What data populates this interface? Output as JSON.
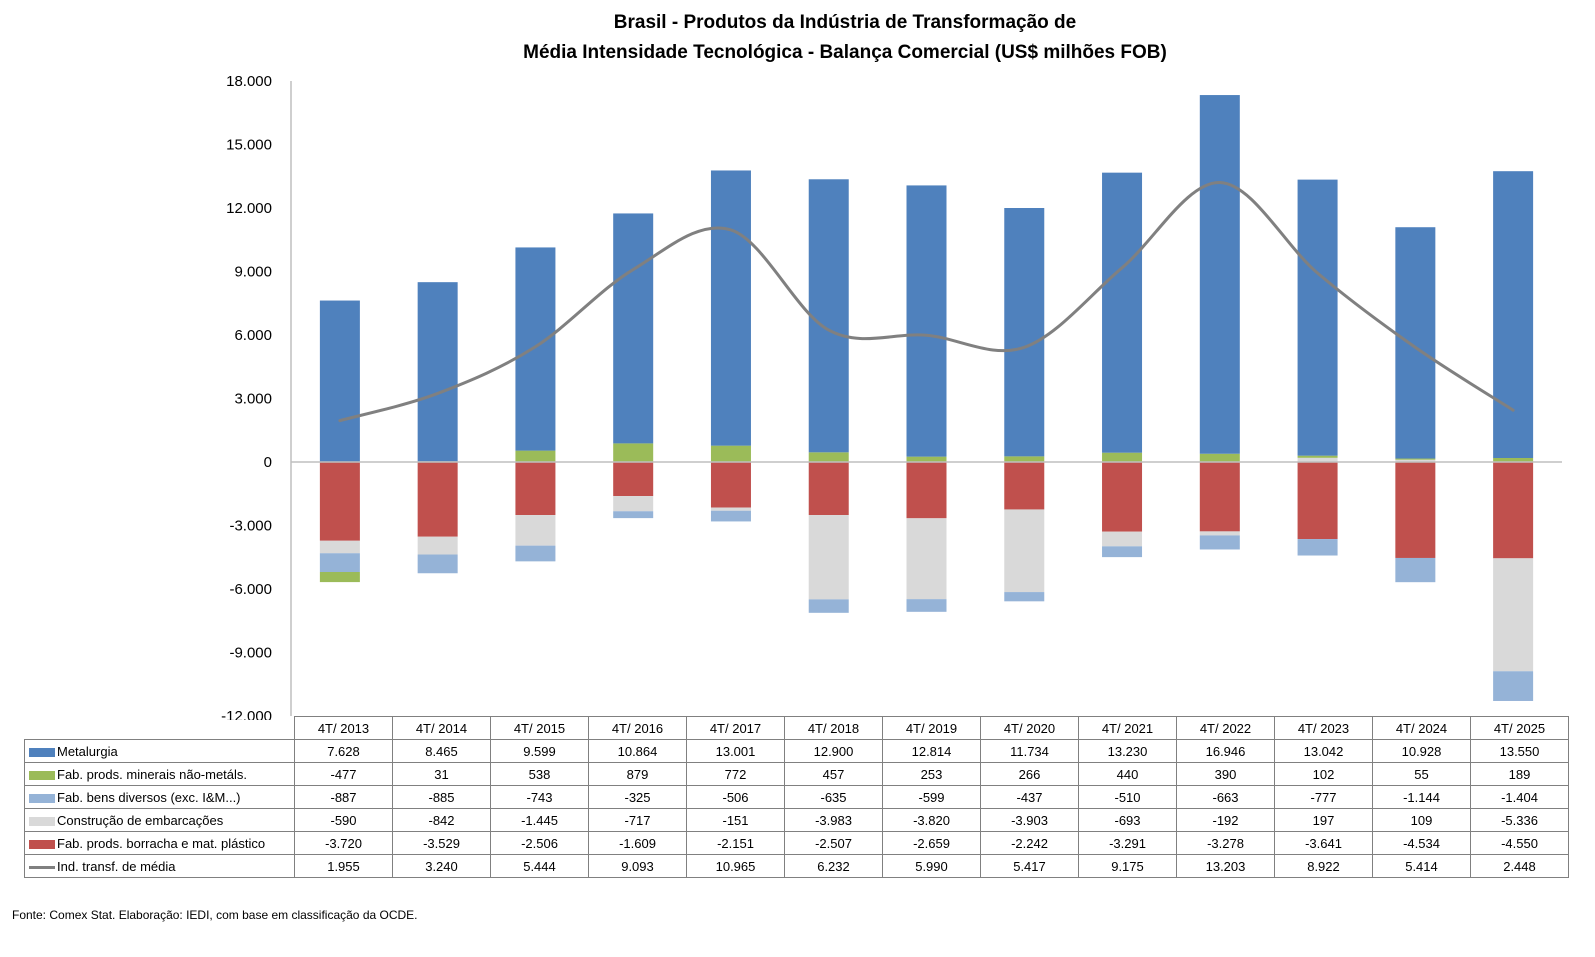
{
  "chart_data": {
    "type": "bar",
    "stacked": true,
    "title": "Brasil - Produtos da Indústria de Transformação de Média Intensidade Tecnológica - Balança Comercial (US$ milhões FOB)",
    "title_lines": [
      "Brasil - Produtos da Indústria de Transformação de",
      "Média Intensidade Tecnológica - Balança Comercial (US$ milhões FOB)"
    ],
    "xlabel": "",
    "ylabel": "",
    "ylim": [
      -12000,
      18000
    ],
    "yticks": [
      18000,
      15000,
      12000,
      9000,
      6000,
      3000,
      0,
      -3000,
      -6000,
      -9000,
      -12000
    ],
    "ytick_labels": [
      "18.000",
      "15.000",
      "12.000",
      "9.000",
      "6.000",
      "3.000",
      "0",
      "-3.000",
      "-6.000",
      "-9.000",
      "-12.000"
    ],
    "grid": false,
    "legend": "data-table",
    "categories": [
      "4T/ 2013",
      "4T/ 2014",
      "4T/ 2015",
      "4T/ 2016",
      "4T/ 2017",
      "4T/ 2018",
      "4T/ 2019",
      "4T/ 2020",
      "4T/ 2021",
      "4T/ 2022",
      "4T/ 2023",
      "4T/ 2024",
      "4T/ 2025"
    ],
    "series": [
      {
        "key": "metalurgia",
        "name": "Metalurgia",
        "type": "bar",
        "color": "#4F81BD",
        "values": [
          7628,
          8465,
          9599,
          10864,
          13001,
          12900,
          12814,
          11734,
          13230,
          16946,
          13042,
          10928,
          13550
        ],
        "labels": [
          "7.628",
          "8.465",
          "9.599",
          "10.864",
          "13.001",
          "12.900",
          "12.814",
          "11.734",
          "13.230",
          "16.946",
          "13.042",
          "10.928",
          "13.550"
        ]
      },
      {
        "key": "minerais",
        "name": "Fab. prods. minerais não-metáls.",
        "type": "bar",
        "color": "#9BBB59",
        "values": [
          -477,
          31,
          538,
          879,
          772,
          457,
          253,
          266,
          440,
          390,
          102,
          55,
          189
        ],
        "labels": [
          "-477",
          "31",
          "538",
          "879",
          "772",
          "457",
          "253",
          "266",
          "440",
          "390",
          "102",
          "55",
          "189"
        ]
      },
      {
        "key": "bens_diversos",
        "name": "Fab. bens diversos (exc. I&M...)",
        "type": "bar",
        "color": "#95B3D7",
        "values": [
          -887,
          -885,
          -743,
          -325,
          -506,
          -635,
          -599,
          -437,
          -510,
          -663,
          -777,
          -1144,
          -1404
        ],
        "labels": [
          "-887",
          "-885",
          "-743",
          "-325",
          "-506",
          "-635",
          "-599",
          "-437",
          "-510",
          "-663",
          "-777",
          "-1.144",
          "-1.404"
        ]
      },
      {
        "key": "embarcacoes",
        "name": "Construção de embarcações",
        "type": "bar",
        "color": "#D9D9D9",
        "values": [
          -590,
          -842,
          -1445,
          -717,
          -151,
          -3983,
          -3820,
          -3903,
          -693,
          -192,
          197,
          109,
          -5336
        ],
        "labels": [
          "-590",
          "-842",
          "-1.445",
          "-717",
          "-151",
          "-3.983",
          "-3.820",
          "-3.903",
          "-693",
          "-192",
          "197",
          "109",
          "-5.336"
        ]
      },
      {
        "key": "borracha",
        "name": "Fab. prods. borracha e mat. plástico",
        "type": "bar",
        "color": "#C0504D",
        "values": [
          -3720,
          -3529,
          -2506,
          -1609,
          -2151,
          -2507,
          -2659,
          -2242,
          -3291,
          -3278,
          -3641,
          -4534,
          -4550
        ],
        "labels": [
          "-3.720",
          "-3.529",
          "-2.506",
          "-1.609",
          "-2.151",
          "-2.507",
          "-2.659",
          "-2.242",
          "-3.291",
          "-3.278",
          "-3.641",
          "-4.534",
          "-4.550"
        ]
      },
      {
        "key": "total",
        "name": "Ind. transf. de média",
        "type": "line",
        "smooth": true,
        "color": "#808080",
        "values": [
          1955,
          3240,
          5444,
          9093,
          10965,
          6232,
          5990,
          5417,
          9175,
          13203,
          8922,
          5414,
          2448
        ],
        "labels": [
          "1.955",
          "3.240",
          "5.444",
          "9.093",
          "10.965",
          "6.232",
          "5.990",
          "5.417",
          "9.175",
          "13.203",
          "8.922",
          "5.414",
          "2.448"
        ]
      }
    ],
    "stack_order": [
      "borracha",
      "embarcacoes",
      "bens_diversos",
      "minerais",
      "metalurgia"
    ],
    "source": "Fonte:  Comex Stat. Elaboração: IEDI, com base em classificação da OCDE."
  }
}
